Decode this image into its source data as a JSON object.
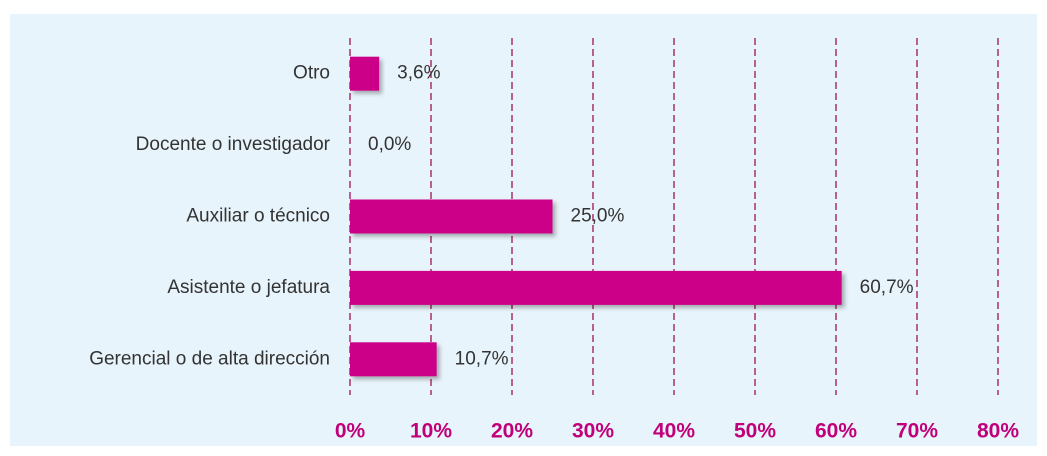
{
  "chart_data": {
    "type": "bar",
    "orientation": "horizontal",
    "categories": [
      "Otro",
      "Docente o investigador",
      "Auxiliar o técnico",
      "Asistente o jefatura",
      "Gerencial o de alta dirección"
    ],
    "values": [
      3.6,
      0.0,
      25.0,
      60.7,
      10.7
    ],
    "value_labels": [
      "3,6%",
      "0,0%",
      "25,0%",
      "60,7%",
      "10,7%"
    ],
    "color": "#cc0088",
    "xlim": [
      0,
      80
    ],
    "xticks": [
      {
        "value": 0,
        "label": "0%"
      },
      {
        "value": 10,
        "label": "10%"
      },
      {
        "value": 20,
        "label": "20%"
      },
      {
        "value": 30,
        "label": "30%"
      },
      {
        "value": 40,
        "label": "40%"
      },
      {
        "value": 50,
        "label": "50%"
      },
      {
        "value": 60,
        "label": "60%"
      },
      {
        "value": 70,
        "label": "70%"
      },
      {
        "value": 80,
        "label": "80%"
      }
    ],
    "grid": true
  }
}
